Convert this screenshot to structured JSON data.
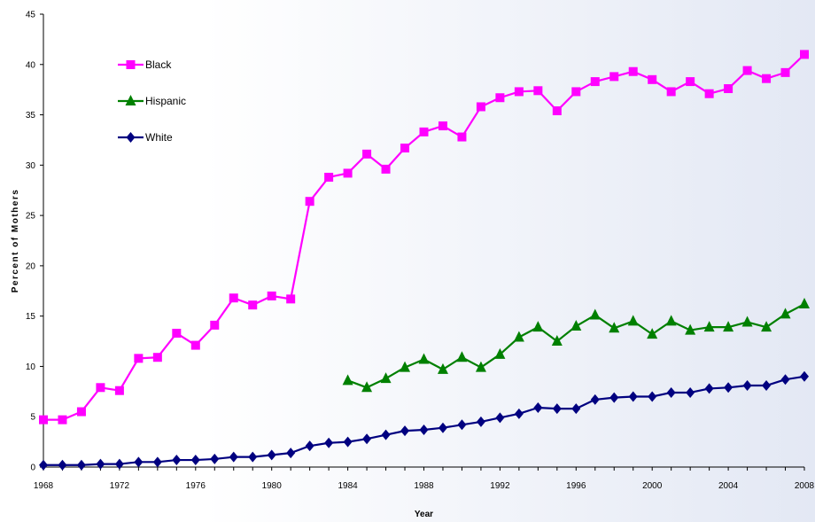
{
  "chart_data": {
    "type": "line",
    "title": "",
    "xlabel": "Year",
    "ylabel": "Percent of Mothers",
    "xlim": [
      1968,
      2008
    ],
    "ylim": [
      0,
      45
    ],
    "x_ticks": [
      1968,
      1972,
      1976,
      1980,
      1984,
      1988,
      1992,
      1996,
      2000,
      2004,
      2008
    ],
    "y_ticks": [
      0,
      5,
      10,
      15,
      20,
      25,
      30,
      35,
      40,
      45
    ],
    "grid": false,
    "legend_position": "top-left",
    "series": [
      {
        "name": "Black",
        "color": "#ff00ff",
        "marker": "square",
        "x": [
          1968,
          1969,
          1970,
          1971,
          1972,
          1973,
          1974,
          1975,
          1976,
          1977,
          1978,
          1979,
          1980,
          1981,
          1982,
          1983,
          1984,
          1985,
          1986,
          1987,
          1988,
          1989,
          1990,
          1991,
          1992,
          1993,
          1994,
          1995,
          1996,
          1997,
          1998,
          1999,
          2000,
          2001,
          2002,
          2003,
          2004,
          2005,
          2006,
          2007,
          2008
        ],
        "values": [
          4.7,
          4.7,
          5.5,
          7.9,
          7.6,
          10.8,
          10.9,
          13.3,
          12.1,
          14.1,
          16.8,
          16.1,
          17.0,
          16.7,
          26.4,
          28.8,
          29.2,
          31.1,
          29.6,
          31.7,
          33.3,
          33.9,
          32.8,
          35.8,
          36.7,
          37.3,
          37.4,
          35.4,
          37.3,
          38.3,
          38.8,
          39.3,
          38.5,
          37.3,
          38.3,
          37.1,
          37.6,
          39.4,
          38.6,
          39.2,
          41.0
        ]
      },
      {
        "name": "Hispanic",
        "color": "#008000",
        "marker": "triangle",
        "x": [
          1984,
          1985,
          1986,
          1987,
          1988,
          1989,
          1990,
          1991,
          1992,
          1993,
          1994,
          1995,
          1996,
          1997,
          1998,
          1999,
          2000,
          2001,
          2002,
          2003,
          2004,
          2005,
          2006,
          2007,
          2008
        ],
        "values": [
          8.6,
          7.9,
          8.8,
          9.9,
          10.7,
          9.7,
          10.9,
          9.9,
          11.2,
          12.9,
          13.9,
          12.5,
          14.0,
          15.1,
          13.8,
          14.5,
          13.2,
          14.5,
          13.6,
          13.9,
          13.9,
          14.4,
          13.9,
          15.2,
          16.2
        ]
      },
      {
        "name": "White",
        "color": "#000080",
        "marker": "diamond",
        "x": [
          1968,
          1969,
          1970,
          1971,
          1972,
          1973,
          1974,
          1975,
          1976,
          1977,
          1978,
          1979,
          1980,
          1981,
          1982,
          1983,
          1984,
          1985,
          1986,
          1987,
          1988,
          1989,
          1990,
          1991,
          1992,
          1993,
          1994,
          1995,
          1996,
          1997,
          1998,
          1999,
          2000,
          2001,
          2002,
          2003,
          2004,
          2005,
          2006,
          2007,
          2008
        ],
        "values": [
          0.2,
          0.2,
          0.2,
          0.3,
          0.3,
          0.5,
          0.5,
          0.7,
          0.7,
          0.8,
          1.0,
          1.0,
          1.2,
          1.4,
          2.1,
          2.4,
          2.5,
          2.8,
          3.2,
          3.6,
          3.7,
          3.9,
          4.2,
          4.5,
          4.9,
          5.3,
          5.9,
          5.8,
          5.8,
          6.7,
          6.9,
          7.0,
          7.0,
          7.4,
          7.4,
          7.8,
          7.9,
          8.1,
          8.1,
          8.7,
          9.0
        ]
      }
    ]
  }
}
